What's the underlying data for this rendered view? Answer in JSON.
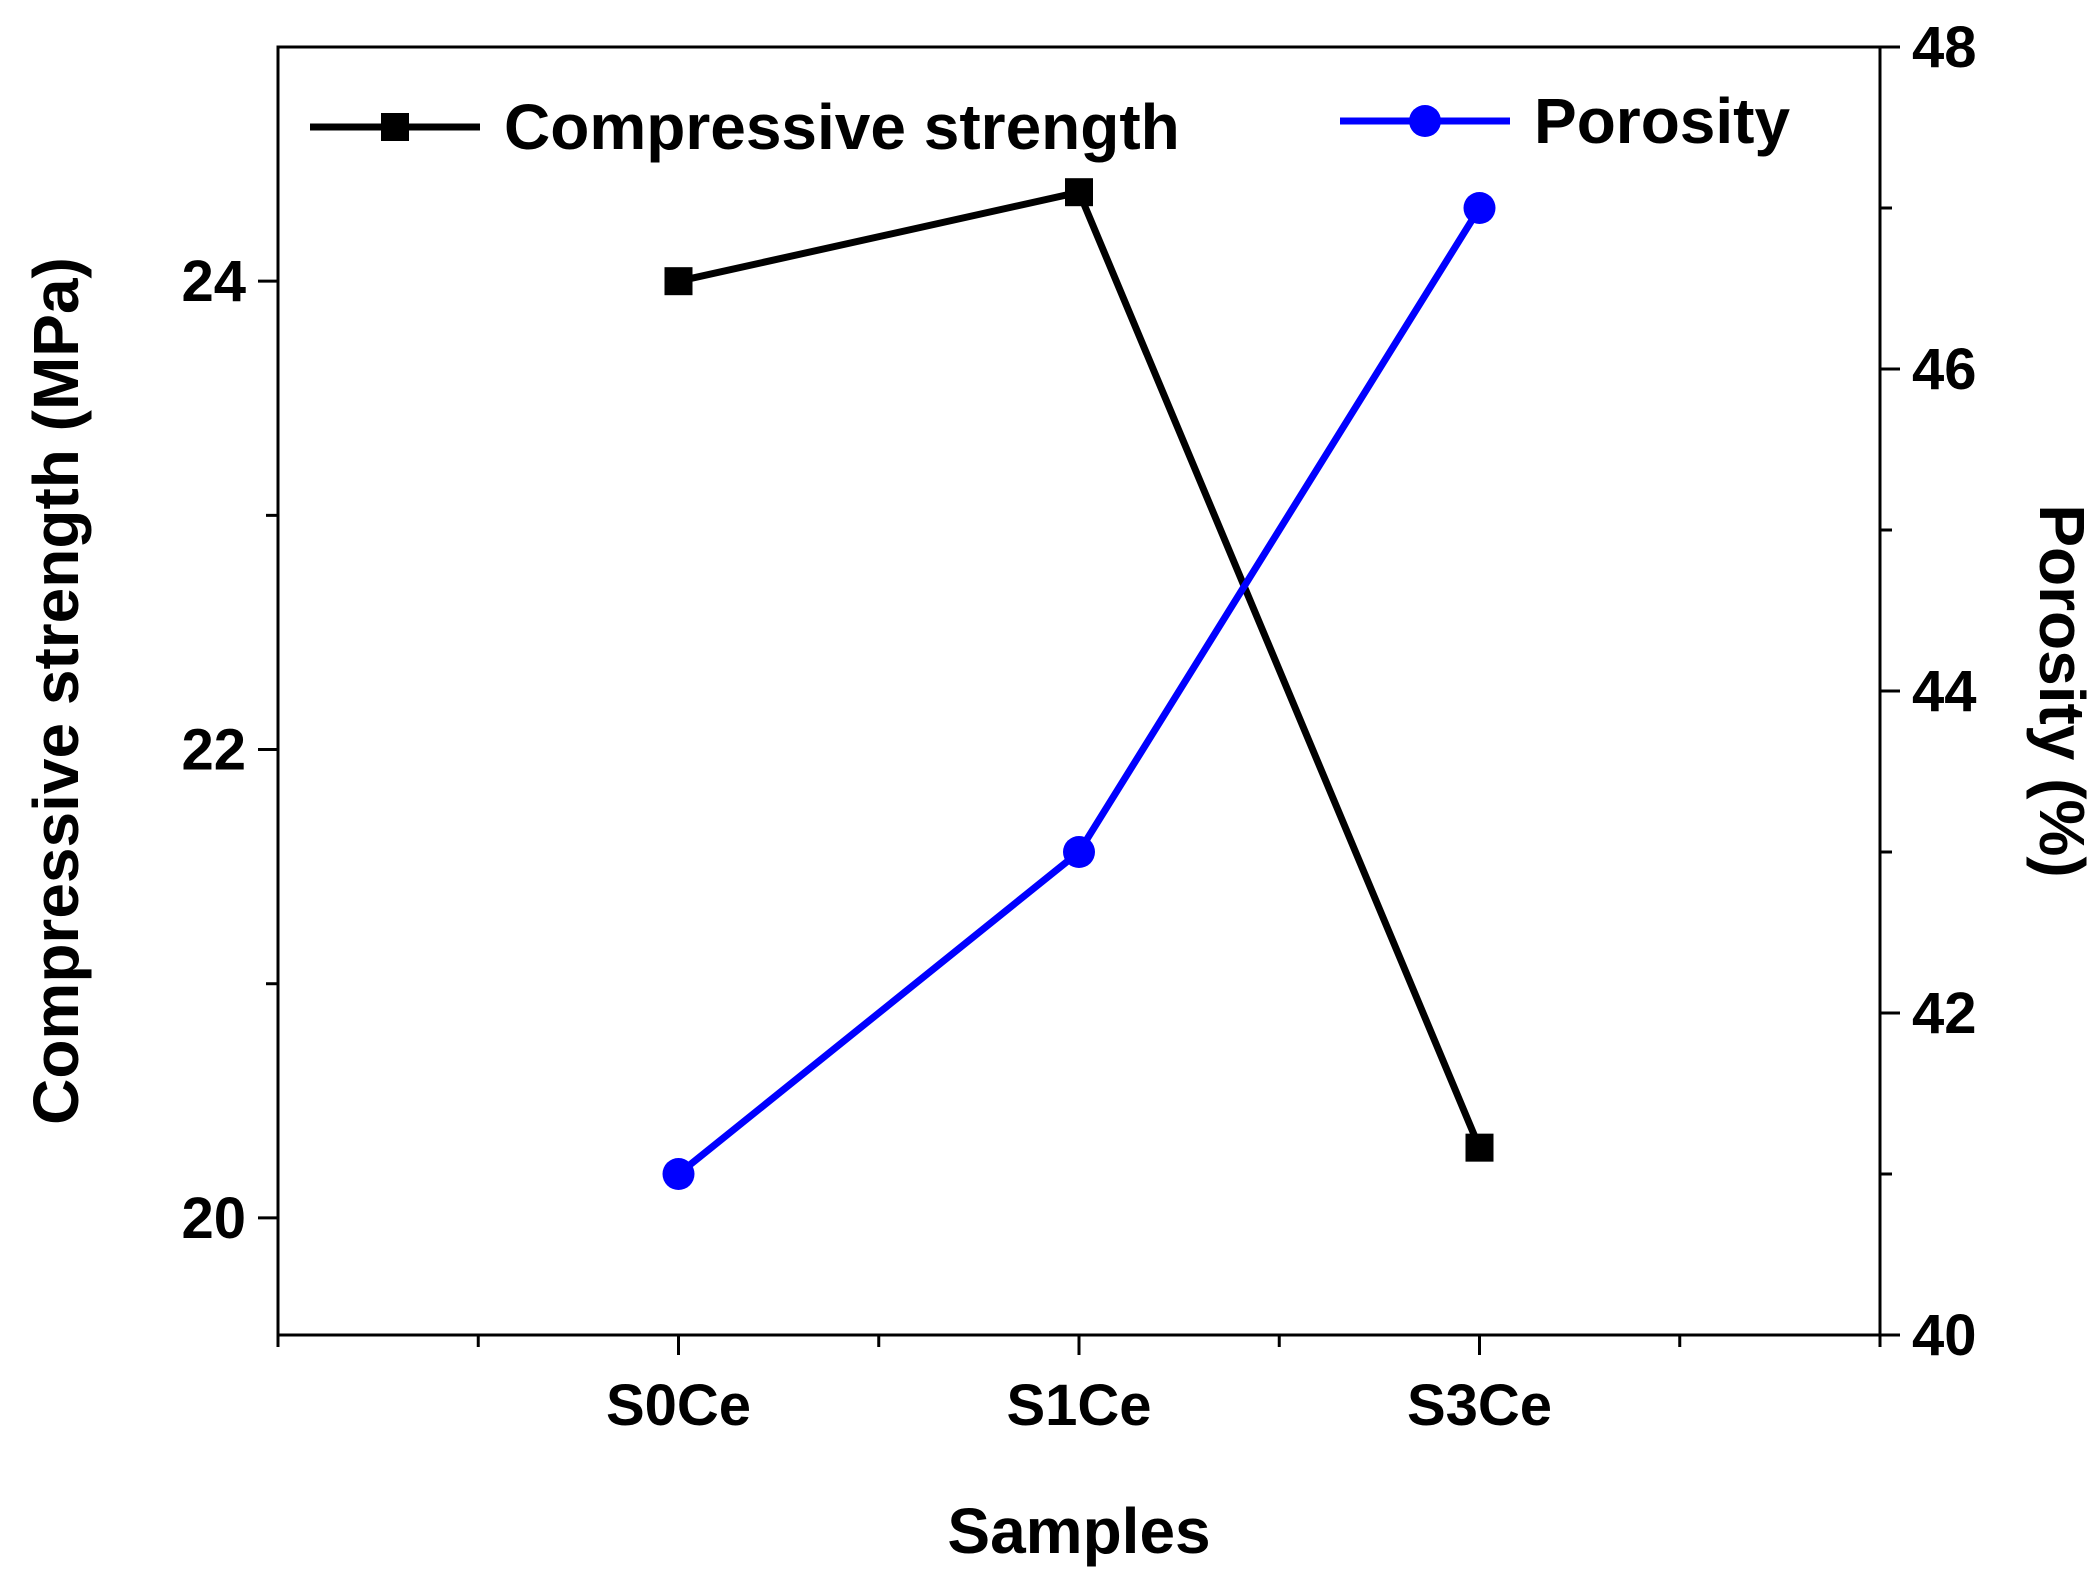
{
  "chart_data": {
    "type": "line",
    "title": "",
    "categories": [
      "S0Ce",
      "S1Ce",
      "S3Ce"
    ],
    "xlabel": "Samples",
    "ylabel": "Compressive strength (MPa)",
    "ylabel_right": "Porosity (%)",
    "ylim": [
      19.5,
      25.0
    ],
    "ylim_right": [
      40,
      48
    ],
    "yticks_major": [
      20,
      22,
      24
    ],
    "yticks_minor": [
      21,
      23
    ],
    "yticks_right": [
      40,
      42,
      44,
      46,
      48
    ],
    "grid": false,
    "legend_position": "top",
    "series": [
      {
        "name": "Compressive strength",
        "axis": "left",
        "marker": "square",
        "color": "#000000",
        "values": [
          24.0,
          24.38,
          20.3
        ]
      },
      {
        "name": "Porosity",
        "axis": "right",
        "marker": "circle",
        "color": "#0000ff",
        "values": [
          41.0,
          43.0,
          47.0
        ]
      }
    ]
  }
}
